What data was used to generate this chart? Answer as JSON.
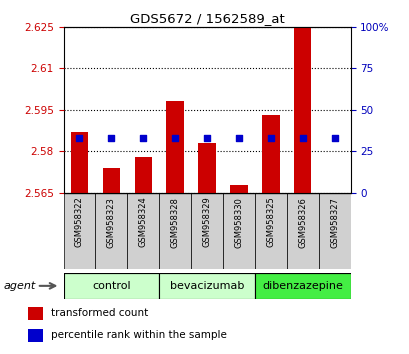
{
  "title": "GDS5672 / 1562589_at",
  "samples": [
    "GSM958322",
    "GSM958323",
    "GSM958324",
    "GSM958328",
    "GSM958329",
    "GSM958330",
    "GSM958325",
    "GSM958326",
    "GSM958327"
  ],
  "transformed_counts": [
    2.587,
    2.574,
    2.578,
    2.598,
    2.583,
    2.568,
    2.593,
    2.625,
    2.565
  ],
  "percentile_ranks": [
    33,
    33,
    33,
    33,
    33,
    33,
    33,
    33,
    33
  ],
  "y_min": 2.565,
  "y_max": 2.625,
  "y_ticks": [
    2.565,
    2.58,
    2.595,
    2.61,
    2.625
  ],
  "right_y_ticks": [
    0,
    25,
    50,
    75,
    100
  ],
  "right_y_labels": [
    "0",
    "25",
    "50",
    "75",
    "100%"
  ],
  "groups": [
    {
      "label": "control",
      "indices": [
        0,
        1,
        2
      ],
      "color": "#ccffcc"
    },
    {
      "label": "bevacizumab",
      "indices": [
        3,
        4,
        5
      ],
      "color": "#ccffcc"
    },
    {
      "label": "dibenzazepine",
      "indices": [
        6,
        7,
        8
      ],
      "color": "#44ee44"
    }
  ],
  "bar_color": "#cc0000",
  "dot_color": "#0000cc",
  "bar_width": 0.55,
  "tick_color_left": "#cc0000",
  "tick_color_right": "#0000bb",
  "agent_label": "agent",
  "xtick_bg_color": "#d0d0d0",
  "legend_items": [
    {
      "label": "transformed count",
      "color": "#cc0000"
    },
    {
      "label": "percentile rank within the sample",
      "color": "#0000cc"
    }
  ]
}
